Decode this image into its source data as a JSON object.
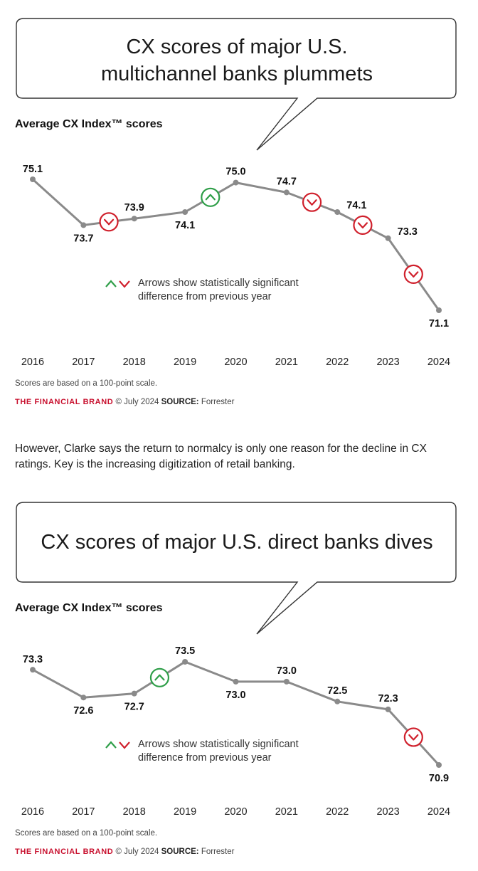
{
  "paragraph": "However, Clarke says the return to normalcy is only one reason for the decline in CX ratings. Key is the increasing digitization of retail banking.",
  "colors": {
    "line": "#8a8a8a",
    "down": "#d0202c",
    "up": "#2e9e48",
    "text": "#111111",
    "brand": "#c8102e"
  },
  "chart_data": [
    {
      "type": "line",
      "title_lines": [
        "CX scores of major U.S.",
        "multichannel banks plummets"
      ],
      "subtitle": "Average CX Index™ scores",
      "x": [
        "2016",
        "2017",
        "2018",
        "2019",
        "2020",
        "2021",
        "2022",
        "2023",
        "2024"
      ],
      "values": [
        75.1,
        73.7,
        73.9,
        74.1,
        75.0,
        74.7,
        74.1,
        73.3,
        71.1
      ],
      "value_labels": [
        "75.1",
        "73.7",
        "73.9",
        "74.1",
        "75.0",
        "74.7",
        "74.1",
        "73.3",
        "71.1"
      ],
      "label_position": [
        "above",
        "below",
        "above",
        "below",
        "above",
        "above",
        "right",
        "right",
        "below"
      ],
      "significance": [
        null,
        "down",
        null,
        "up",
        null,
        "down",
        "down",
        "down"
      ],
      "legend_text": [
        "Arrows show statistically significant",
        "difference from previous year"
      ],
      "legend_icons": [
        "up-arrow-icon",
        "down-arrow-icon"
      ],
      "note": "Scores are based on a 100-point scale.",
      "credit": {
        "brand": "THE FINANCIAL BRAND",
        "date": " © July 2024 ",
        "source_label": "SOURCE:",
        "source": " Forrester"
      }
    },
    {
      "type": "line",
      "title_lines": [
        "CX scores of major U.S. direct banks dives"
      ],
      "subtitle": "Average CX Index™ scores",
      "x": [
        "2016",
        "2017",
        "2018",
        "2019",
        "2020",
        "2021",
        "2022",
        "2023",
        "2024"
      ],
      "values": [
        73.3,
        72.6,
        72.7,
        73.5,
        73.0,
        73.0,
        72.5,
        72.3,
        70.9
      ],
      "value_labels": [
        "73.3",
        "72.6",
        "72.7",
        "73.5",
        "73.0",
        "73.0",
        "72.5",
        "72.3",
        "70.9"
      ],
      "label_position": [
        "above",
        "below",
        "below",
        "above",
        "below",
        "above",
        "above",
        "above",
        "below"
      ],
      "significance": [
        null,
        null,
        "up",
        null,
        null,
        null,
        null,
        "down"
      ],
      "legend_text": [
        "Arrows show statistically significant",
        "difference from previous year"
      ],
      "legend_icons": [
        "up-arrow-icon",
        "down-arrow-icon"
      ],
      "note": "Scores are based on a 100-point scale.",
      "credit": {
        "brand": "THE FINANCIAL BRAND",
        "date": " © July 2024 ",
        "source_label": "SOURCE:",
        "source": " Forrester"
      }
    }
  ]
}
